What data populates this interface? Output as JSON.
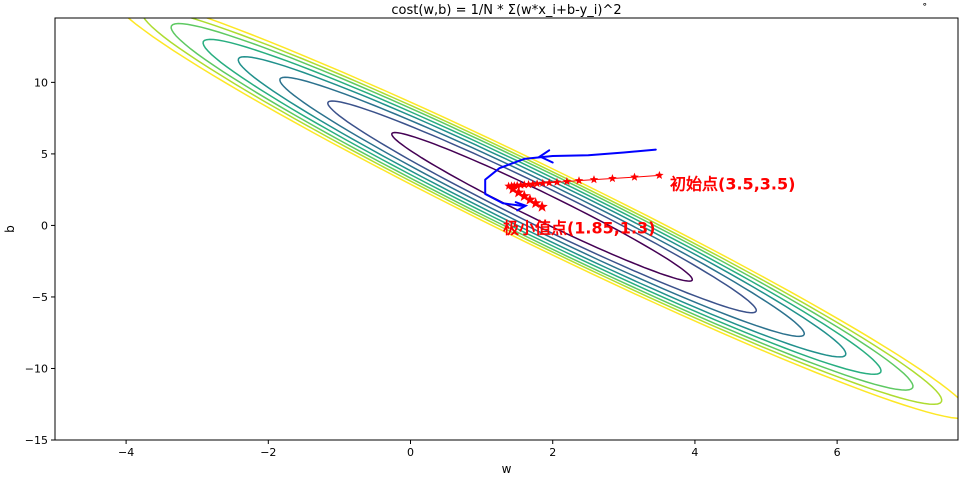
{
  "chart_data": {
    "type": "contour",
    "title": "cost(w,b) = 1/N * Σ(w*x_i+b-y_i)^2",
    "xlabel": "w",
    "ylabel": "b",
    "xlim": [
      -5,
      7.7
    ],
    "ylim": [
      -15,
      14.5
    ],
    "xticks": [
      -4,
      -2,
      0,
      2,
      4,
      6
    ],
    "yticks": [
      -15,
      -10,
      -5,
      0,
      5,
      10
    ],
    "grid": false,
    "contours": {
      "center": [
        1.85,
        1.3
      ],
      "colormap": "viridis",
      "levels": [
        {
          "a": 2.35,
          "b": 6.1,
          "color": "#440154"
        },
        {
          "a": 3.35,
          "b": 8.6,
          "color": "#3b528b"
        },
        {
          "a": 4.1,
          "b": 10.5,
          "color": "#2c728e"
        },
        {
          "a": 4.75,
          "b": 12.2,
          "color": "#21918c"
        },
        {
          "a": 5.3,
          "b": 13.6,
          "color": "#28ae80"
        },
        {
          "a": 5.8,
          "b": 14.9,
          "color": "#5ec962"
        },
        {
          "a": 6.25,
          "b": 16.0,
          "color": "#addc30"
        },
        {
          "a": 6.7,
          "b": 17.2,
          "color": "#fde725"
        }
      ],
      "angle_deg": -26
    },
    "descent_path": {
      "color": "#ff0000",
      "marker": "star",
      "points": [
        [
          3.5,
          3.5
        ],
        [
          3.15,
          3.38
        ],
        [
          2.84,
          3.28
        ],
        [
          2.58,
          3.2
        ],
        [
          2.37,
          3.13
        ],
        [
          2.2,
          3.07
        ],
        [
          2.06,
          3.02
        ],
        [
          1.95,
          2.98
        ],
        [
          1.86,
          2.95
        ],
        [
          1.78,
          2.92
        ],
        [
          1.72,
          2.89
        ],
        [
          1.66,
          2.86
        ],
        [
          1.6,
          2.84
        ],
        [
          1.55,
          2.82
        ],
        [
          1.5,
          2.8
        ],
        [
          1.46,
          2.78
        ],
        [
          1.42,
          2.76
        ],
        [
          1.38,
          2.75
        ],
        [
          1.44,
          2.55
        ],
        [
          1.52,
          2.3
        ],
        [
          1.6,
          2.05
        ],
        [
          1.68,
          1.8
        ],
        [
          1.76,
          1.55
        ],
        [
          1.85,
          1.3
        ]
      ]
    },
    "annotations": [
      {
        "text": "初始点(3.5,3.5)",
        "x": 3.65,
        "y": 2.5
      },
      {
        "text": "极小值点(1.85,1.3)",
        "x": 1.3,
        "y": -0.55
      }
    ],
    "handwritten_arrow": {
      "color": "#0000ff",
      "points": [
        [
          3.45,
          5.3
        ],
        [
          3.0,
          5.1
        ],
        [
          2.5,
          4.9
        ],
        [
          2.0,
          4.85
        ],
        [
          1.6,
          4.65
        ],
        [
          1.25,
          4.0
        ],
        [
          1.05,
          3.2
        ],
        [
          1.05,
          2.2
        ],
        [
          1.3,
          1.55
        ],
        [
          1.6,
          1.35
        ]
      ],
      "arrowhead_start": [
        [
          1.95,
          5.25
        ],
        [
          1.82,
          4.82
        ],
        [
          2.0,
          4.4
        ]
      ],
      "arrowhead_end": [
        [
          1.48,
          1.62
        ],
        [
          1.62,
          1.38
        ],
        [
          1.5,
          1.05
        ]
      ]
    },
    "corner_mark": "˚"
  }
}
